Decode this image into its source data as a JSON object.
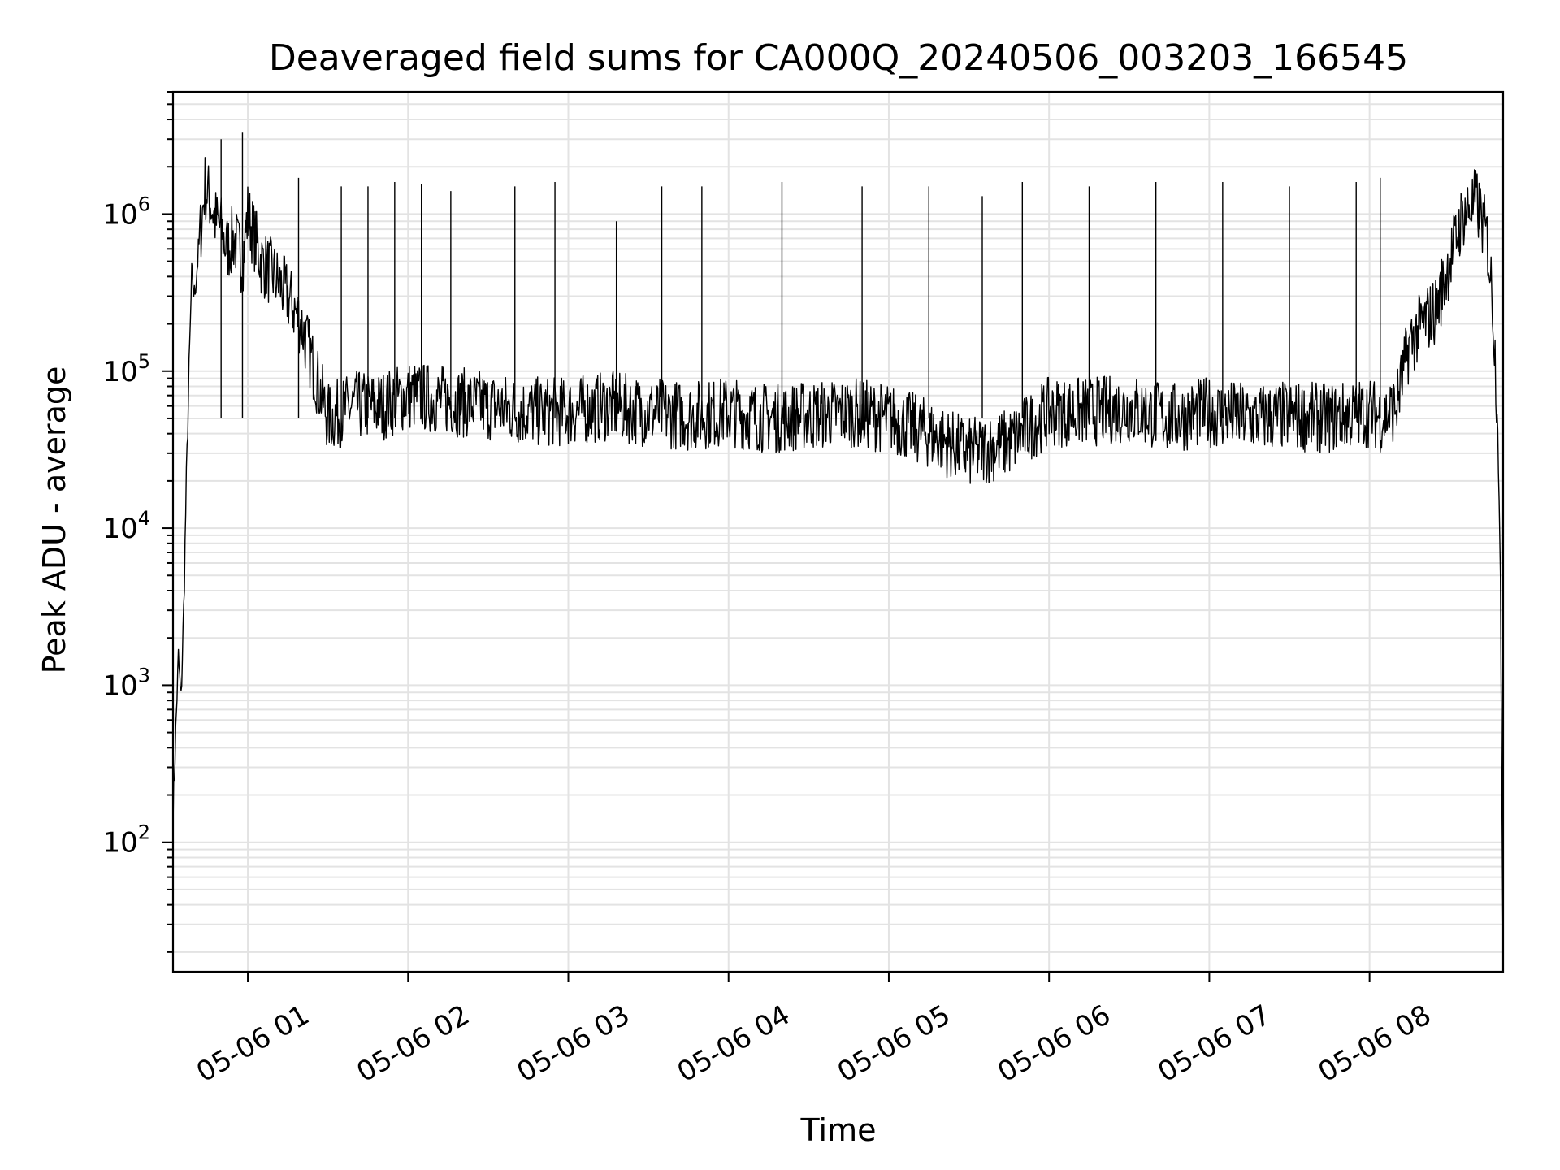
{
  "chart_data": {
    "type": "line",
    "title": "Deaveraged field sums for CA000Q_20240506_003203_166545",
    "xlabel": "Time",
    "ylabel": "Peak ADU - average",
    "yscale": "log",
    "ylim": [
      15,
      6000000
    ],
    "xlim": [
      "2024-05-06 00:32",
      "2024-05-06 08:50"
    ],
    "grid": true,
    "line_color": "#000000",
    "x_ticks": [
      {
        "value": "2024-05-06 01:00",
        "label": "05-06 01"
      },
      {
        "value": "2024-05-06 02:00",
        "label": "05-06 02"
      },
      {
        "value": "2024-05-06 03:00",
        "label": "05-06 03"
      },
      {
        "value": "2024-05-06 04:00",
        "label": "05-06 04"
      },
      {
        "value": "2024-05-06 05:00",
        "label": "05-06 05"
      },
      {
        "value": "2024-05-06 06:00",
        "label": "05-06 06"
      },
      {
        "value": "2024-05-06 07:00",
        "label": "05-06 07"
      },
      {
        "value": "2024-05-06 08:00",
        "label": "05-06 08"
      }
    ],
    "y_ticks": [
      {
        "value": 100,
        "base": "10",
        "exp": "2"
      },
      {
        "value": 1000,
        "base": "10",
        "exp": "3"
      },
      {
        "value": 10000,
        "base": "10",
        "exp": "4"
      },
      {
        "value": 100000,
        "base": "10",
        "exp": "5"
      },
      {
        "value": 1000000,
        "base": "10",
        "exp": "6"
      }
    ],
    "series": [
      {
        "x": [
          "2024-05-06 00:32",
          "2024-05-06 00:33",
          "2024-05-06 00:34",
          "2024-05-06 00:35",
          "2024-05-06 00:36",
          "2024-05-06 00:37",
          "2024-05-06 00:38",
          "2024-05-06 00:39",
          "2024-05-06 00:40",
          "2024-05-06 00:42",
          "2024-05-06 00:44",
          "2024-05-06 00:46",
          "2024-05-06 00:48",
          "2024-05-06 00:50",
          "2024-05-06 00:52",
          "2024-05-06 00:55",
          "2024-05-06 00:58",
          "2024-05-06 01:00",
          "2024-05-06 01:05",
          "2024-05-06 01:10",
          "2024-05-06 01:15",
          "2024-05-06 01:20",
          "2024-05-06 01:25",
          "2024-05-06 01:30",
          "2024-05-06 01:40",
          "2024-05-06 01:50",
          "2024-05-06 02:00",
          "2024-05-06 02:15",
          "2024-05-06 02:30",
          "2024-05-06 02:45",
          "2024-05-06 03:00",
          "2024-05-06 03:15",
          "2024-05-06 03:30",
          "2024-05-06 03:45",
          "2024-05-06 04:00",
          "2024-05-06 04:15",
          "2024-05-06 04:30",
          "2024-05-06 04:45",
          "2024-05-06 05:00",
          "2024-05-06 05:15",
          "2024-05-06 05:30",
          "2024-05-06 05:45",
          "2024-05-06 06:00",
          "2024-05-06 06:15",
          "2024-05-06 06:30",
          "2024-05-06 06:45",
          "2024-05-06 07:00",
          "2024-05-06 07:15",
          "2024-05-06 07:30",
          "2024-05-06 07:45",
          "2024-05-06 08:00",
          "2024-05-06 08:05",
          "2024-05-06 08:10",
          "2024-05-06 08:15",
          "2024-05-06 08:20",
          "2024-05-06 08:25",
          "2024-05-06 08:30",
          "2024-05-06 08:35",
          "2024-05-06 08:40",
          "2024-05-06 08:44",
          "2024-05-06 08:46",
          "2024-05-06 08:48",
          "2024-05-06 08:49",
          "2024-05-06 08:50"
        ],
        "y": [
          150,
          500,
          1500,
          800,
          3000,
          20000,
          100000,
          400000,
          300000,
          700000,
          1500000,
          1200000,
          900000,
          800000,
          600000,
          700000,
          500000,
          1000000,
          500000,
          400000,
          300000,
          200000,
          100000,
          50000,
          60000,
          60000,
          70000,
          65000,
          60000,
          55000,
          55000,
          60000,
          55000,
          52000,
          55000,
          50000,
          52000,
          55000,
          50000,
          40000,
          30000,
          35000,
          55000,
          55000,
          58000,
          50000,
          55000,
          50000,
          52000,
          50000,
          55000,
          50000,
          60000,
          150000,
          200000,
          250000,
          500000,
          1000000,
          1200000,
          700000,
          300000,
          50000,
          4000,
          20
        ]
      }
    ],
    "spikes": [
      {
        "x": "2024-05-06 00:50",
        "y": 3000000
      },
      {
        "x": "2024-05-06 00:58",
        "y": 3300000
      },
      {
        "x": "2024-05-06 01:19",
        "y": 1700000
      },
      {
        "x": "2024-05-06 01:35",
        "y": 1500000
      },
      {
        "x": "2024-05-06 01:45",
        "y": 1500000
      },
      {
        "x": "2024-05-06 01:55",
        "y": 1600000
      },
      {
        "x": "2024-05-06 02:05",
        "y": 1550000
      },
      {
        "x": "2024-05-06 02:16",
        "y": 1400000
      },
      {
        "x": "2024-05-06 02:40",
        "y": 1500000
      },
      {
        "x": "2024-05-06 02:55",
        "y": 1600000
      },
      {
        "x": "2024-05-06 03:18",
        "y": 900000
      },
      {
        "x": "2024-05-06 03:35",
        "y": 1500000
      },
      {
        "x": "2024-05-06 03:50",
        "y": 1500000
      },
      {
        "x": "2024-05-06 04:20",
        "y": 1600000
      },
      {
        "x": "2024-05-06 04:50",
        "y": 1500000
      },
      {
        "x": "2024-05-06 05:15",
        "y": 1500000
      },
      {
        "x": "2024-05-06 05:35",
        "y": 1300000
      },
      {
        "x": "2024-05-06 05:50",
        "y": 1600000
      },
      {
        "x": "2024-05-06 06:15",
        "y": 1500000
      },
      {
        "x": "2024-05-06 06:40",
        "y": 1600000
      },
      {
        "x": "2024-05-06 07:05",
        "y": 1600000
      },
      {
        "x": "2024-05-06 07:30",
        "y": 1500000
      },
      {
        "x": "2024-05-06 07:55",
        "y": 1600000
      },
      {
        "x": "2024-05-06 08:04",
        "y": 1700000
      }
    ]
  }
}
